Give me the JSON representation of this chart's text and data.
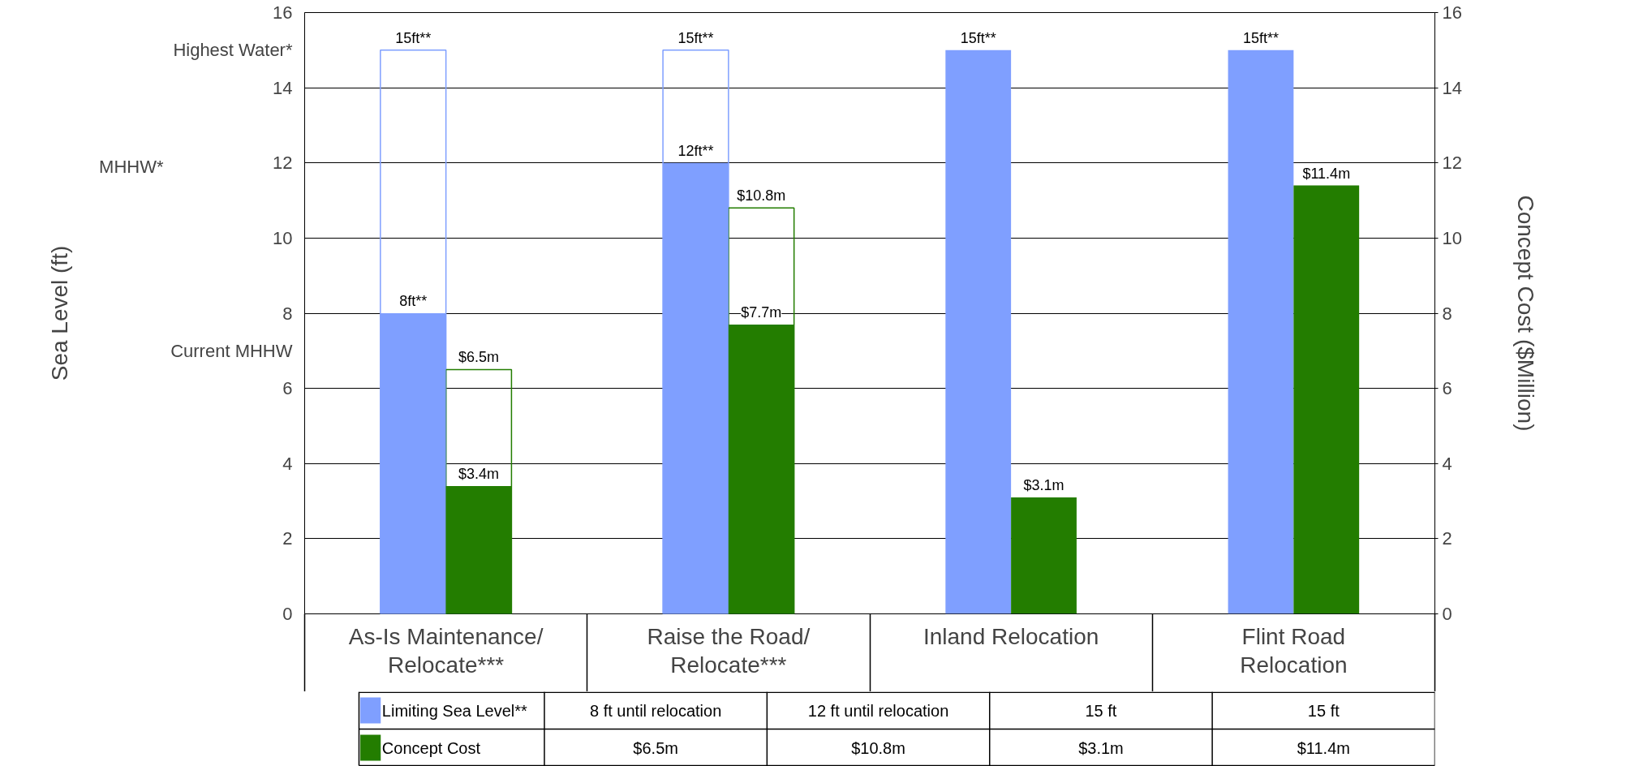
{
  "chart_data": {
    "type": "bar",
    "categories": [
      "As-Is Maintenance/\nRelocate***",
      "Raise the Road/\nRelocate***",
      "Inland Relocation",
      "Flint Road\nRelocation"
    ],
    "ylabel": "Sea Level (ft)",
    "y2label": "Concept Cost ($Million)",
    "ylim": [
      0,
      16
    ],
    "yticks": [
      0,
      2,
      4,
      6,
      8,
      10,
      12,
      14,
      16,
      {
        "value": 15,
        "label": "Highest Water*"
      },
      {
        "value": 7,
        "label": "Current MHHW"
      }
    ],
    "y2lim": [
      0,
      16
    ],
    "y2ticks": [
      0,
      2,
      4,
      6,
      8,
      10,
      12,
      14,
      16
    ],
    "grid": "y",
    "legend": "bottom",
    "series": [
      {
        "line_style": "solid",
        "color": "#7f9fff",
        "values": [
          15,
          15,
          null,
          null
        ],
        "value_labels": [
          "15ft**",
          "15ft**",
          null,
          null
        ]
      },
      {
        "line_style": "solid",
        "color": "#237d00",
        "axis": "y2",
        "values": [
          6.5,
          10.8,
          null,
          null
        ],
        "value_labels": [
          "$6.5m",
          "$10.8m",
          null,
          null
        ]
      },
      {
        "name": "Limiting Sea Level**",
        "color": "#7f9fff",
        "values": [
          8,
          12,
          15,
          15
        ],
        "value_labels": [
          "8ft**",
          "12ft**",
          "15ft**",
          "15ft**"
        ]
      },
      {
        "name": "Concept Cost",
        "color": "#237d00",
        "axis": "y2",
        "values": [
          3.4,
          7.7,
          3.1,
          11.4
        ],
        "value_labels": [
          "$3.4m",
          "$7.7m",
          "$3.1m",
          "$11.4m"
        ]
      }
    ],
    "annotations": [
      "MHHW*",
      "8 ft until relocation",
      "12 ft until relocation",
      "15 ft",
      "15 ft",
      "$6.5m",
      "$10.8m",
      "$3.1m",
      "$11.4m"
    ]
  }
}
